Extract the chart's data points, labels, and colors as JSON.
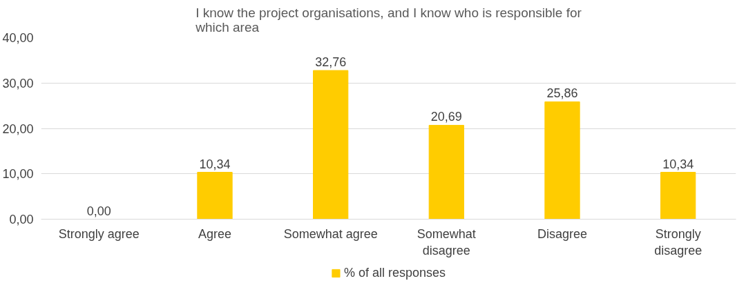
{
  "chart_data": {
    "type": "bar",
    "title": "I know the project organisations, and I know who is responsible for which area",
    "categories": [
      "Strongly agree",
      "Agree",
      "Somewhat agree",
      "Somewhat disagree",
      "Disagree",
      "Strongly disagree"
    ],
    "series": [
      {
        "name": "% of all responses",
        "color": "#ffcc00",
        "values": [
          0,
          10.34,
          32.76,
          20.69,
          25.86,
          10.34
        ],
        "value_labels": [
          "0,00",
          "10,34",
          "32,76",
          "20,69",
          "25,86",
          "10,34"
        ]
      }
    ],
    "ylim": [
      0,
      40
    ],
    "yticks": [
      {
        "value": 0,
        "label": "0,00"
      },
      {
        "value": 10,
        "label": "10,00"
      },
      {
        "value": 20,
        "label": "20,00"
      },
      {
        "value": 30,
        "label": "30,00"
      },
      {
        "value": 40,
        "label": "40,00"
      }
    ],
    "grid": "y",
    "legend": "bottom"
  }
}
